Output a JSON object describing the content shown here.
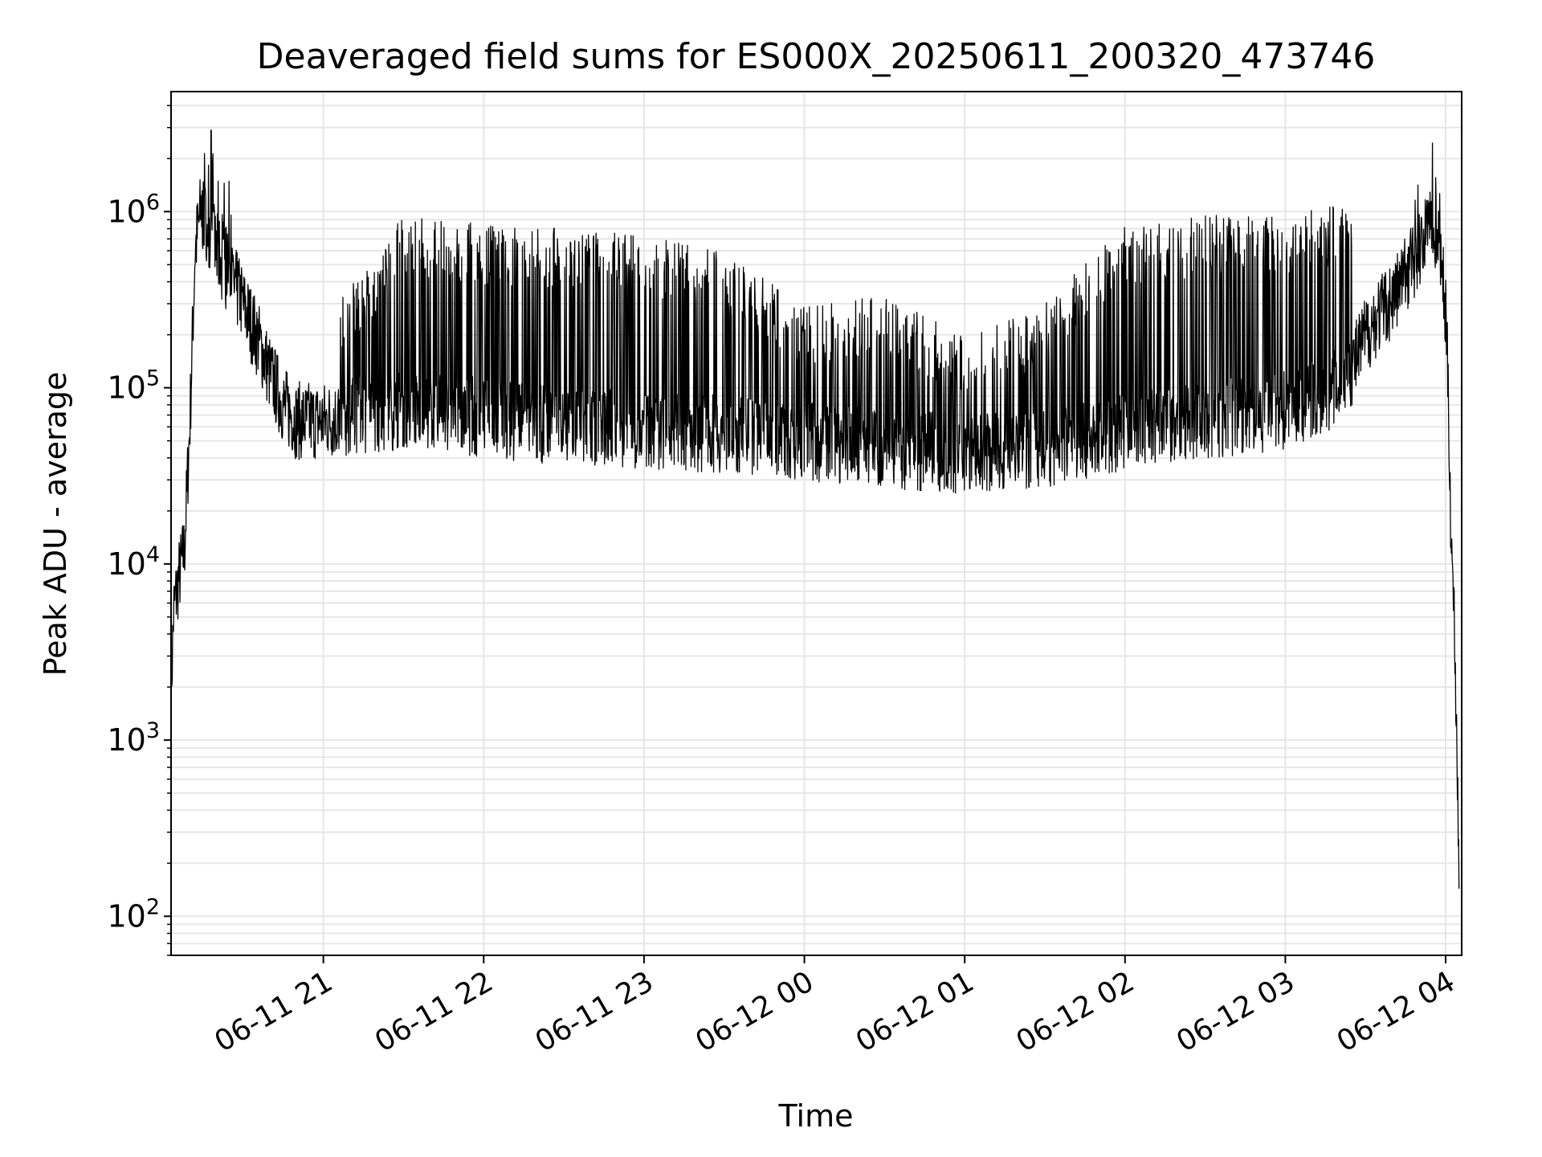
{
  "chart_data": {
    "type": "line",
    "title": "Deaveraged field sums for ES000X_20250611_200320_473746",
    "xlabel": "Time",
    "ylabel": "Peak ADU - average",
    "yscale": "log",
    "xlim": [
      "2025-06-11 20:03",
      "2025-06-12 04:06"
    ],
    "ylim": [
      60,
      4800000
    ],
    "grid": true,
    "legend": "none",
    "x_ticks": [
      {
        "label": "06-11 21",
        "time": "2025-06-11 21:00"
      },
      {
        "label": "06-11 22",
        "time": "2025-06-11 22:00"
      },
      {
        "label": "06-11 23",
        "time": "2025-06-11 23:00"
      },
      {
        "label": "06-12 00",
        "time": "2025-06-12 00:00"
      },
      {
        "label": "06-12 01",
        "time": "2025-06-12 01:00"
      },
      {
        "label": "06-12 02",
        "time": "2025-06-12 02:00"
      },
      {
        "label": "06-12 03",
        "time": "2025-06-12 03:00"
      },
      {
        "label": "06-12 04",
        "time": "2025-06-12 04:00"
      }
    ],
    "y_ticks": [
      {
        "base": "10",
        "exp": "2",
        "value": 100
      },
      {
        "base": "10",
        "exp": "3",
        "value": 1000
      },
      {
        "base": "10",
        "exp": "4",
        "value": 10000
      },
      {
        "base": "10",
        "exp": "5",
        "value": 100000
      },
      {
        "base": "10",
        "exp": "6",
        "value": 1000000
      }
    ],
    "series": [
      {
        "color": "#000000",
        "baseline": {
          "x": [
            "2025-06-11 20:03",
            "2025-06-11 20:04",
            "2025-06-11 20:06",
            "2025-06-11 20:08",
            "2025-06-11 20:10",
            "2025-06-11 20:12",
            "2025-06-11 20:14",
            "2025-06-11 20:16",
            "2025-06-11 20:18",
            "2025-06-11 20:20",
            "2025-06-11 20:24",
            "2025-06-11 20:28",
            "2025-06-11 20:32",
            "2025-06-11 20:36",
            "2025-06-11 20:40",
            "2025-06-11 20:45",
            "2025-06-11 20:50",
            "2025-06-11 21:00",
            "2025-06-11 21:15",
            "2025-06-11 21:30",
            "2025-06-11 22:00",
            "2025-06-11 22:30",
            "2025-06-11 23:00",
            "2025-06-11 23:30",
            "2025-06-12 00:00",
            "2025-06-12 00:30",
            "2025-06-12 01:00",
            "2025-06-12 01:30",
            "2025-06-12 02:00",
            "2025-06-12 02:30",
            "2025-06-12 03:00",
            "2025-06-12 03:15",
            "2025-06-12 03:25",
            "2025-06-12 03:30",
            "2025-06-12 03:35",
            "2025-06-12 03:40",
            "2025-06-12 03:45",
            "2025-06-12 03:50",
            "2025-06-12 03:53",
            "2025-06-12 03:55",
            "2025-06-12 03:57",
            "2025-06-12 03:59",
            "2025-06-12 04:00",
            "2025-06-12 04:01",
            "2025-06-12 04:02",
            "2025-06-12 04:03",
            "2025-06-12 04:04",
            "2025-06-12 04:05"
          ],
          "y": [
            1800,
            5500,
            8500,
            12000,
            60000,
            600000,
            1000000,
            900000,
            750000,
            600000,
            450000,
            350000,
            250000,
            180000,
            120000,
            80000,
            65000,
            65000,
            70000,
            75000,
            68000,
            60000,
            58000,
            55000,
            50000,
            45000,
            42000,
            45000,
            55000,
            65000,
            75000,
            90000,
            130000,
            200000,
            260000,
            320000,
            450000,
            600000,
            800000,
            900000,
            700000,
            400000,
            250000,
            100000,
            15000,
            6000,
            1500,
            170
          ]
        },
        "burst_top": {
          "x": [
            "2025-06-11 21:05",
            "2025-06-11 21:30",
            "2025-06-11 22:00",
            "2025-06-11 22:30",
            "2025-06-11 23:00",
            "2025-06-11 23:30",
            "2025-06-12 00:00",
            "2025-06-12 00:30",
            "2025-06-12 01:00",
            "2025-06-12 01:30",
            "2025-06-12 02:00",
            "2025-06-12 02:30",
            "2025-06-12 03:00",
            "2025-06-12 03:25"
          ],
          "y": [
            300000,
            950000,
            850000,
            800000,
            750000,
            600000,
            300000,
            350000,
            200000,
            300000,
            850000,
            950000,
            1000000,
            1100000
          ]
        },
        "spike_peak": {
          "x": "2025-06-11 20:18",
          "y": 2900000
        }
      }
    ]
  }
}
